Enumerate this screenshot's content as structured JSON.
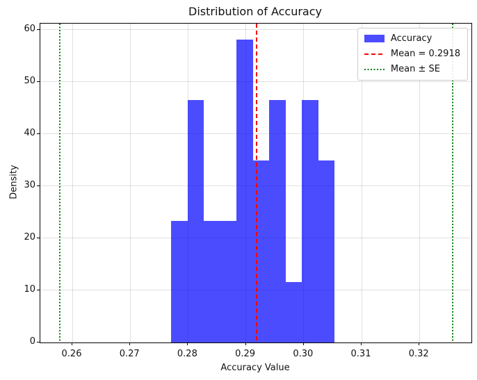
{
  "chart_data": {
    "type": "bar",
    "subtype": "histogram",
    "title": "Distribution of Accuracy",
    "xlabel": "Accuracy Value",
    "ylabel": "Density",
    "xlim": [
      0.254471,
      0.32899
    ],
    "ylim": [
      0,
      61.16
    ],
    "grid": true,
    "grid_color": "rgba(0,0,0,0.12)",
    "x_tick_labels": [
      "0.26",
      "0.27",
      "0.28",
      "0.29",
      "0.30",
      "0.31",
      "0.32"
    ],
    "x_tick_values": [
      0.26,
      0.27,
      0.28,
      0.29,
      0.3,
      0.31,
      0.32
    ],
    "y_tick_labels": [
      "0",
      "10",
      "20",
      "30",
      "40",
      "50",
      "60"
    ],
    "y_tick_values": [
      0,
      10,
      20,
      30,
      40,
      50,
      60
    ],
    "bar_color": "rgba(0,0,255,0.7)",
    "bin_edges": [
      0.27707,
      0.2799,
      0.28273,
      0.28556,
      0.28838,
      0.29121,
      0.29404,
      0.29687,
      0.2997,
      0.30253,
      0.30536
    ],
    "densities": [
      23.26,
      46.51,
      23.26,
      23.26,
      58.14,
      34.88,
      46.51,
      11.63,
      46.51,
      34.88
    ],
    "bin_counts": [
      2,
      4,
      2,
      2,
      5,
      3,
      4,
      1,
      4,
      3
    ],
    "mean": 0.2918,
    "se": 0.034,
    "vlines": [
      {
        "x": 0.2918,
        "color": "#ff0000",
        "style": "dashed",
        "name": "mean-line"
      },
      {
        "x": 0.2578,
        "color": "#008000",
        "style": "dotted",
        "name": "se-line-lower"
      },
      {
        "x": 0.3258,
        "color": "#008000",
        "style": "dotted",
        "name": "se-line-upper"
      }
    ],
    "legend": {
      "position": "upper right",
      "entries": [
        {
          "swatch": "patch",
          "color": "rgba(0,0,255,0.7)",
          "label": "Accuracy"
        },
        {
          "swatch": "dashed-line",
          "color": "#ff0000",
          "label": "Mean = 0.2918"
        },
        {
          "swatch": "dotted-line",
          "color": "#008000",
          "label": "Mean ± SE"
        }
      ]
    }
  }
}
